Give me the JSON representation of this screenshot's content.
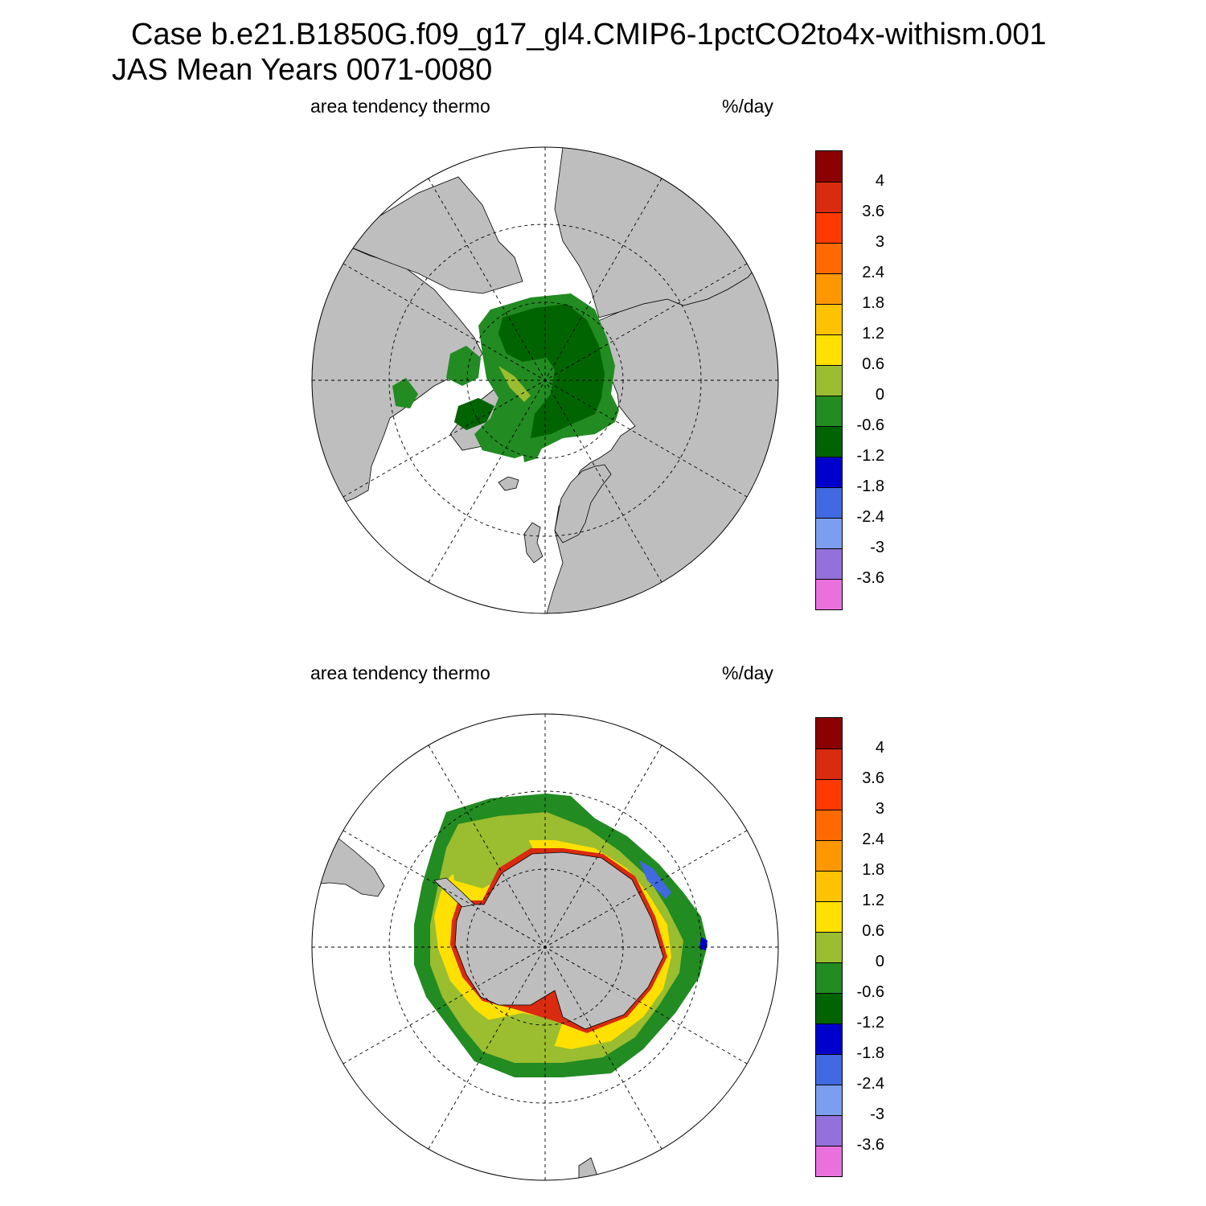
{
  "title": {
    "line1": "Case b.e21.B1850G.f09_g17_gl4.CMIP6-1pctCO2to4x-withism.001",
    "line2": "JAS Mean   Years 0071-0080"
  },
  "panels": [
    {
      "hemisphere": "north",
      "variable_label": "area tendency thermo",
      "units_label": "%/day"
    },
    {
      "hemisphere": "south",
      "variable_label": "area tendency thermo",
      "units_label": "%/day"
    }
  ],
  "colorbar": {
    "labels": [
      "4",
      "3.6",
      "3",
      "2.4",
      "1.8",
      "1.2",
      "0.6",
      "0",
      "-0.6",
      "-1.2",
      "-1.8",
      "-2.4",
      "-3",
      "-3.6"
    ],
    "colors": [
      "#8b0000",
      "#d92b10",
      "#ff3a00",
      "#ff6a00",
      "#ff9700",
      "#ffc200",
      "#ffe000",
      "#9bbd30",
      "#228b22",
      "#006400",
      "#0000cd",
      "#4169e1",
      "#7b9ef0",
      "#9370db",
      "#ea70dd"
    ]
  },
  "map_colors": {
    "land": "#bebebe",
    "ocean": "#ffffff",
    "coast": "#000000"
  }
}
